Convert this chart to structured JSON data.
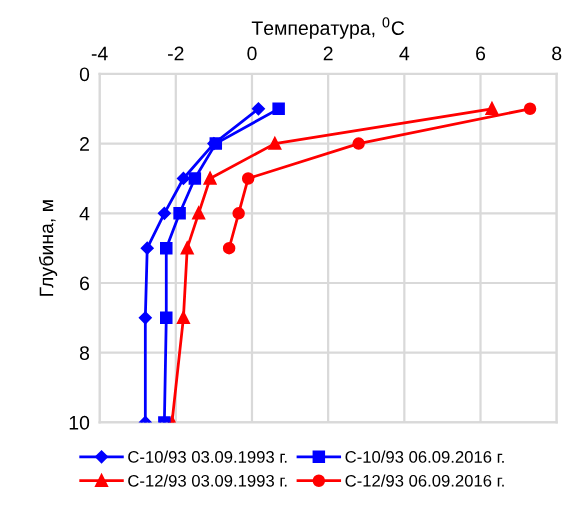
{
  "chart_data": {
    "type": "line",
    "xlabel": "Температура, $^{0}$C",
    "ylabel": "Глубина, м",
    "xlim": [
      -4,
      8
    ],
    "xticks": [
      -4,
      -2,
      0,
      2,
      4,
      6,
      8
    ],
    "ylim": [
      10,
      0
    ],
    "yticks": [
      0,
      2,
      4,
      6,
      8,
      10
    ],
    "grid": true,
    "legend": "bottom",
    "series": [
      {
        "name": "С-10/93 03.09.1993 г.",
        "color": "#0000ff",
        "marker": "diamond",
        "x": [
          0.17,
          -1.0,
          -1.8,
          -2.3,
          -2.75,
          -2.8,
          -2.8
        ],
        "values": [
          1,
          2,
          3,
          4,
          5,
          7,
          10
        ]
      },
      {
        "name": "С-10/93 06.09.2016 г.",
        "color": "#0000ff",
        "marker": "square",
        "x": [
          0.7,
          -0.95,
          -1.5,
          -1.9,
          -2.25,
          -2.25,
          -2.3
        ],
        "values": [
          1,
          2,
          3,
          4,
          5,
          7,
          10
        ]
      },
      {
        "name": "С-12/93 03.09.1993 г.",
        "color": "#ff0000",
        "marker": "triangle",
        "x": [
          6.3,
          0.6,
          -1.1,
          -1.4,
          -1.7,
          -1.8,
          -2.1
        ],
        "values": [
          1,
          2,
          3,
          4,
          5,
          7,
          10
        ]
      },
      {
        "name": "С-12/93 06.09.2016 г.",
        "color": "#ff0000",
        "marker": "circle",
        "x": [
          7.3,
          2.8,
          -0.1,
          -0.35,
          -0.6
        ],
        "values": [
          1,
          2,
          3,
          4,
          5
        ]
      }
    ]
  }
}
